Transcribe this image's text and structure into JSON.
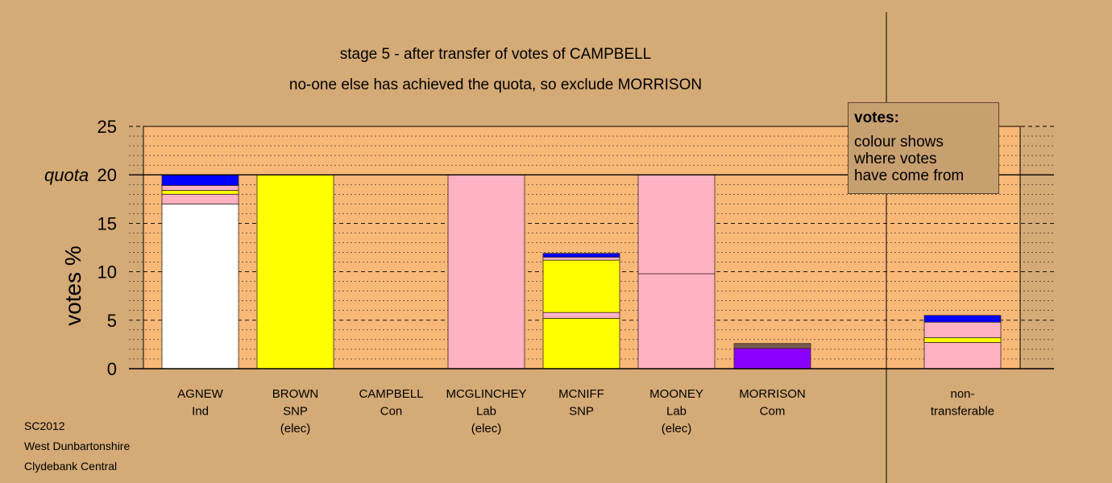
{
  "chart_data": {
    "type": "bar",
    "stacked": true,
    "title": "stage 5 - after transfer of votes of CAMPBELL",
    "subtitle": "no-one else has achieved the quota, so exclude MORRISON",
    "ylabel": "votes %",
    "ylim": [
      0,
      25
    ],
    "yticks": [
      "0",
      "5",
      "10",
      "15",
      "20",
      "25"
    ],
    "quota_label": "quota",
    "quota_value": 20,
    "grid": true,
    "legend": {
      "title": "votes:",
      "lines": [
        "colour shows",
        "where votes",
        "have come from"
      ],
      "placement": "top-right"
    },
    "colors": {
      "Ind": "#ffffff",
      "Lab": "#ffb2c2",
      "SNP": "#ffff00",
      "Con": "#0000ff",
      "Com": "#8a00ff",
      "Other": "#7a5a50"
    },
    "candidates": [
      {
        "line1": "AGNEW",
        "line2": "Ind",
        "line3": "",
        "segments": [
          {
            "source": "Ind",
            "value": 17.0
          },
          {
            "source": "Lab",
            "value": 1.0
          },
          {
            "source": "SNP",
            "value": 0.4
          },
          {
            "source": "Lab",
            "value": 0.5
          },
          {
            "source": "Con",
            "value": 1.1
          }
        ]
      },
      {
        "line1": "BROWN",
        "line2": "SNP",
        "line3": "(elec)",
        "segments": [
          {
            "source": "SNP",
            "value": 20.0
          }
        ]
      },
      {
        "line1": "CAMPBELL",
        "line2": "Con",
        "line3": "",
        "segments": []
      },
      {
        "line1": "MCGLINCHEY",
        "line2": "Lab",
        "line3": "(elec)",
        "segments": [
          {
            "source": "Lab",
            "value": 20.0
          }
        ]
      },
      {
        "line1": "MCNIFF",
        "line2": "SNP",
        "line3": "",
        "segments": [
          {
            "source": "SNP",
            "value": 5.2
          },
          {
            "source": "Lab",
            "value": 0.6
          },
          {
            "source": "SNP",
            "value": 5.4
          },
          {
            "source": "Lab",
            "value": 0.3
          },
          {
            "source": "Con",
            "value": 0.4
          }
        ]
      },
      {
        "line1": "MOONEY",
        "line2": "Lab",
        "line3": "(elec)",
        "segments": [
          {
            "source": "Lab",
            "value": 9.8
          },
          {
            "source": "Lab",
            "value": 10.2
          }
        ]
      },
      {
        "line1": "MORRISON",
        "line2": "Com",
        "line3": "",
        "segments": [
          {
            "source": "Com",
            "value": 2.1
          },
          {
            "source": "Other",
            "value": 0.5
          }
        ]
      },
      {
        "line1": "non-",
        "line2": "transferable",
        "line3": "",
        "separated": true,
        "segments": [
          {
            "source": "Lab",
            "value": 2.7
          },
          {
            "source": "SNP",
            "value": 0.5
          },
          {
            "source": "Lab",
            "value": 1.6
          },
          {
            "source": "Con",
            "value": 0.7
          }
        ]
      }
    ]
  },
  "footer": {
    "line1": "SC2012",
    "line2": "West Dunbartonshire",
    "line3": "Clydebank Central"
  }
}
